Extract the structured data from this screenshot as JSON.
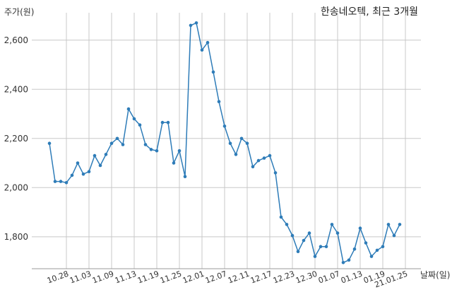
{
  "chart_data": {
    "type": "line",
    "title": "한송네오텍, 최근 3개월",
    "ylabel": "주가(원)",
    "xlabel": "날짜(일)",
    "ylim": [
      1670,
      2700
    ],
    "y_ticks": [
      "1,800",
      "2,000",
      "2,200",
      "2,400",
      "2,600"
    ],
    "y_tick_values": [
      1800,
      2000,
      2200,
      2400,
      2600
    ],
    "x_tick_labels": [
      "10.28",
      "11.03",
      "11.09",
      "11.13",
      "11.19",
      "11.25",
      "12.01",
      "12.07",
      "12.11",
      "12.17",
      "12.23",
      "12.30",
      "01.07",
      "01.13",
      "01.19",
      "21.01.25"
    ],
    "x_tick_indices": [
      3,
      7,
      11,
      15,
      19,
      23,
      27,
      31,
      35,
      39,
      43,
      47,
      51,
      55,
      59,
      63
    ],
    "grid": true,
    "color": "#2e7cb8",
    "values": [
      2180,
      2025,
      2025,
      2020,
      2050,
      2100,
      2055,
      2065,
      2130,
      2090,
      2135,
      2180,
      2200,
      2175,
      2320,
      2280,
      2255,
      2175,
      2155,
      2150,
      2265,
      2265,
      2100,
      2150,
      2045,
      2660,
      2670,
      2560,
      2590,
      2470,
      2350,
      2250,
      2180,
      2135,
      2200,
      2180,
      2085,
      2110,
      2120,
      2130,
      2060,
      1880,
      1850,
      1805,
      1740,
      1785,
      1815,
      1720,
      1760,
      1760,
      1850,
      1815,
      1695,
      1705,
      1750,
      1835,
      1775,
      1720,
      1745,
      1760,
      1850,
      1805,
      1850
    ]
  }
}
